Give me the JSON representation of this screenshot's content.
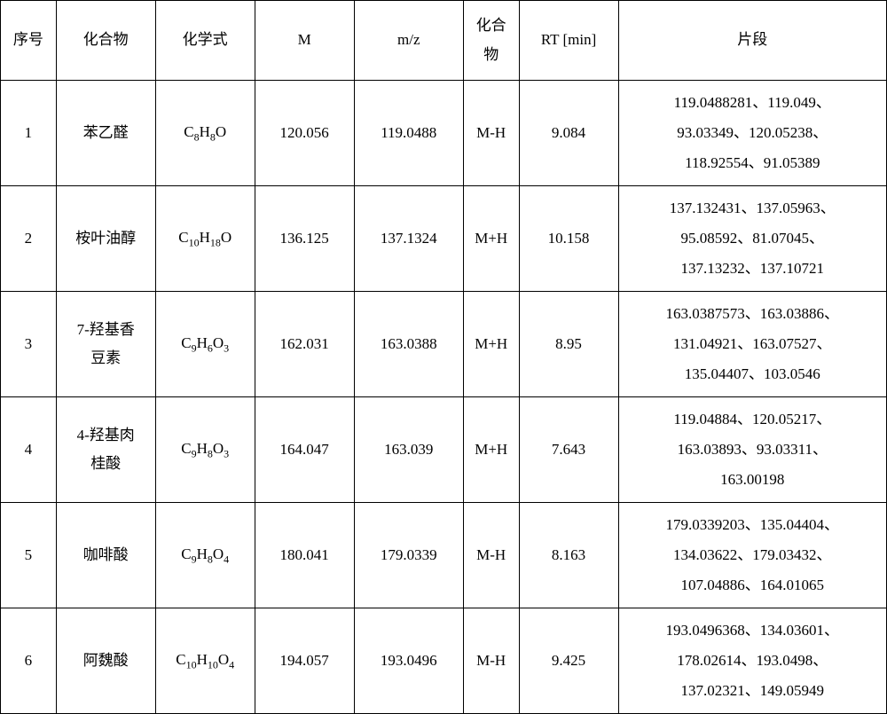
{
  "headers": {
    "seq": "序号",
    "compound": "化合物",
    "formula": "化学式",
    "m": "M",
    "mz": "m/z",
    "compound2_line1": "化合",
    "compound2_line2": "物",
    "rt": "RT [min]",
    "fragment": "片段"
  },
  "rows": [
    {
      "seq": "1",
      "compound": "苯乙醛",
      "formula_html": "C<sub>8</sub>H<sub>8</sub>O",
      "m": "120.056",
      "mz": "119.0488",
      "compound2": "M-H",
      "rt": "9.084",
      "fragment_line1": "119.0488281、119.049、",
      "fragment_line2": "93.03349、120.05238、",
      "fragment_line3": "118.92554、91.05389"
    },
    {
      "seq": "2",
      "compound": "桉叶油醇",
      "formula_html": "C<sub>10</sub>H<sub>18</sub>O",
      "m": "136.125",
      "mz": "137.1324",
      "compound2": "M+H",
      "rt": "10.158",
      "fragment_line1": "137.132431、137.05963、",
      "fragment_line2": "95.08592、81.07045、",
      "fragment_line3": "137.13232、137.10721"
    },
    {
      "seq": "3",
      "compound_line1": "7-羟基香",
      "compound_line2": "豆素",
      "formula_html": "C<sub>9</sub>H<sub>6</sub>O<sub>3</sub>",
      "m": "162.031",
      "mz": "163.0388",
      "compound2": "M+H",
      "rt": "8.95",
      "fragment_line1": "163.0387573、163.03886、",
      "fragment_line2": "131.04921、163.07527、",
      "fragment_line3": "135.04407、103.0546"
    },
    {
      "seq": "4",
      "compound_line1": "4-羟基肉",
      "compound_line2": "桂酸",
      "formula_html": "C<sub>9</sub>H<sub>8</sub>O<sub>3</sub>",
      "m": "164.047",
      "mz": "163.039",
      "compound2": "M+H",
      "rt": "7.643",
      "fragment_line1": "119.04884、120.05217、",
      "fragment_line2": "163.03893、93.03311、",
      "fragment_line3": "163.00198"
    },
    {
      "seq": "5",
      "compound": "咖啡酸",
      "formula_html": "C<sub>9</sub>H<sub>8</sub>O<sub>4</sub>",
      "m": "180.041",
      "mz": "179.0339",
      "compound2": "M-H",
      "rt": "8.163",
      "fragment_line1": "179.0339203、135.04404、",
      "fragment_line2": "134.03622、179.03432、",
      "fragment_line3": "107.04886、164.01065"
    },
    {
      "seq": "6",
      "compound": "阿魏酸",
      "formula_html": "C<sub>10</sub>H<sub>10</sub>O<sub>4</sub>",
      "m": "194.057",
      "mz": "193.0496",
      "compound2": "M-H",
      "rt": "9.425",
      "fragment_line1": "193.0496368、134.03601、",
      "fragment_line2": "178.02614、193.0498、",
      "fragment_line3": "137.02321、149.05949"
    }
  ]
}
